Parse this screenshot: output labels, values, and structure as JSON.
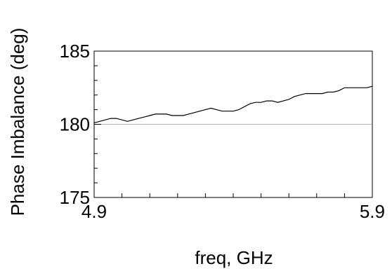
{
  "chart_data": {
    "type": "line",
    "title": "",
    "xlabel": "freq, GHz",
    "ylabel": "Phase Imbalance (deg)",
    "xlim": [
      4.9,
      5.9
    ],
    "ylim": [
      175,
      185
    ],
    "x_ticks": [
      "4.9",
      "5.9"
    ],
    "y_ticks": [
      "185",
      "180",
      "175"
    ],
    "grid": false,
    "reference_line": {
      "y": 180,
      "color": "#b0b0b0"
    },
    "series": [
      {
        "color": "#000000",
        "x": [
          4.9,
          4.92,
          4.94,
          4.96,
          4.98,
          5.0,
          5.02,
          5.04,
          5.06,
          5.08,
          5.1,
          5.12,
          5.14,
          5.16,
          5.18,
          5.2,
          5.22,
          5.24,
          5.26,
          5.28,
          5.3,
          5.32,
          5.34,
          5.36,
          5.38,
          5.4,
          5.42,
          5.44,
          5.46,
          5.48,
          5.5,
          5.52,
          5.54,
          5.56,
          5.58,
          5.6,
          5.62,
          5.64,
          5.66,
          5.68,
          5.7,
          5.72,
          5.74,
          5.76,
          5.78,
          5.8,
          5.82,
          5.84,
          5.86,
          5.88,
          5.9
        ],
        "y": [
          180.1,
          180.2,
          180.3,
          180.4,
          180.4,
          180.3,
          180.2,
          180.3,
          180.4,
          180.5,
          180.6,
          180.7,
          180.7,
          180.7,
          180.6,
          180.6,
          180.6,
          180.7,
          180.8,
          180.9,
          181.0,
          181.1,
          181.0,
          180.9,
          180.9,
          180.9,
          181.0,
          181.2,
          181.4,
          181.5,
          181.5,
          181.6,
          181.6,
          181.5,
          181.6,
          181.7,
          181.9,
          182.0,
          182.1,
          182.1,
          182.1,
          182.1,
          182.2,
          182.2,
          182.3,
          182.5,
          182.5,
          182.5,
          182.5,
          182.5,
          182.6
        ]
      }
    ]
  }
}
